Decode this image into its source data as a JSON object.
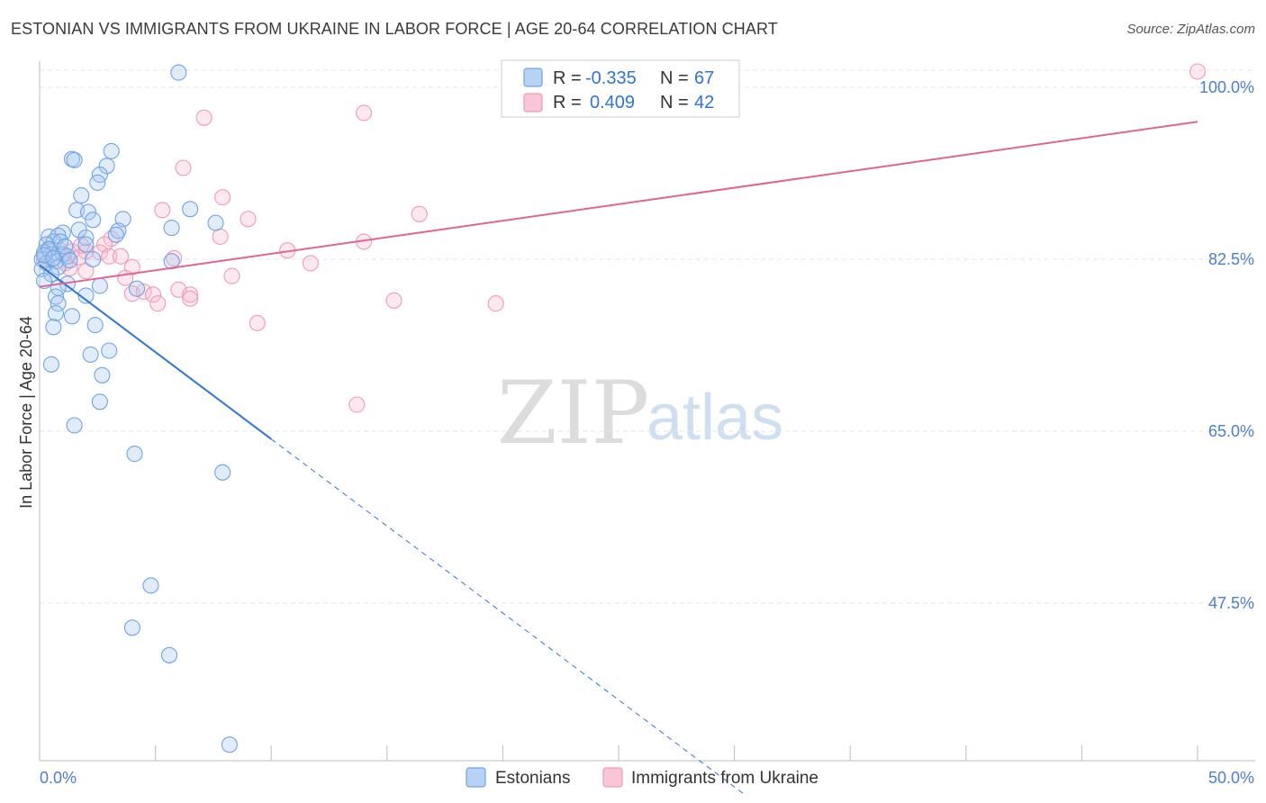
{
  "title": "ESTONIAN VS IMMIGRANTS FROM UKRAINE IN LABOR FORCE | AGE 20-64 CORRELATION CHART",
  "source": "Source: ZipAtlas.com",
  "colors": {
    "estonians": "#6fa3e6",
    "ukraine": "#f19ab8",
    "estonians_line": "#2e74d4",
    "ukraine_line": "#e06592",
    "tick_label": "#4a7fd0"
  },
  "chart_data": {
    "type": "scatter",
    "title": "ESTONIAN VS IMMIGRANTS FROM UKRAINE IN LABOR FORCE | AGE 20-64 CORRELATION CHART",
    "xlabel": "",
    "ylabel": "In Labor Force | Age 20-64",
    "xlim": [
      0,
      50
    ],
    "ylim": [
      32,
      102
    ],
    "x_tick_labels": [
      "0.0%",
      "50.0%"
    ],
    "y_ticks": [
      47.5,
      65.0,
      82.5,
      100.0
    ],
    "y_tick_labels": [
      "47.5%",
      "65.0%",
      "82.5%",
      "100.0%"
    ],
    "grid": true,
    "legend": {
      "position": "top-center",
      "rows": [
        {
          "r_label": "R =",
          "r_value": "-0.335",
          "n_label": "N =",
          "n_value": "67"
        },
        {
          "r_label": "R =",
          "r_value": "0.409",
          "n_label": "N =",
          "n_value": "42"
        }
      ]
    },
    "series": [
      {
        "name": "Estonians",
        "color": "#6fa3e6",
        "trend": {
          "x0": 0,
          "y0": 81.9,
          "x1": 10,
          "y1": 64.2,
          "dash_to_x": 30.5
        },
        "points": [
          [
            6.0,
            101.5
          ],
          [
            3.1,
            93.5
          ],
          [
            1.4,
            92.7
          ],
          [
            1.5,
            92.6
          ],
          [
            2.9,
            92.0
          ],
          [
            2.6,
            91.1
          ],
          [
            2.5,
            90.3
          ],
          [
            1.8,
            89.0
          ],
          [
            6.5,
            87.6
          ],
          [
            1.6,
            87.5
          ],
          [
            2.1,
            87.3
          ],
          [
            2.3,
            86.5
          ],
          [
            3.6,
            86.6
          ],
          [
            7.6,
            86.2
          ],
          [
            1.7,
            85.5
          ],
          [
            5.7,
            85.7
          ],
          [
            3.4,
            85.4
          ],
          [
            1.0,
            85.2
          ],
          [
            0.4,
            84.8
          ],
          [
            0.8,
            84.9
          ],
          [
            3.3,
            85.0
          ],
          [
            2.0,
            84.7
          ],
          [
            0.6,
            84.3
          ],
          [
            0.3,
            84.0
          ],
          [
            0.9,
            84.3
          ],
          [
            2.0,
            84.0
          ],
          [
            0.2,
            83.2
          ],
          [
            0.5,
            83.0
          ],
          [
            1.0,
            83.0
          ],
          [
            0.1,
            82.5
          ],
          [
            0.7,
            82.3
          ],
          [
            0.3,
            82.1
          ],
          [
            1.2,
            82.8
          ],
          [
            5.7,
            82.3
          ],
          [
            2.3,
            82.5
          ],
          [
            0.8,
            81.7
          ],
          [
            0.1,
            81.5
          ],
          [
            0.5,
            81.0
          ],
          [
            0.2,
            80.3
          ],
          [
            1.2,
            80.0
          ],
          [
            2.6,
            79.8
          ],
          [
            0.8,
            79.6
          ],
          [
            0.7,
            78.7
          ],
          [
            4.2,
            79.5
          ],
          [
            2.0,
            78.8
          ],
          [
            0.8,
            78.0
          ],
          [
            0.7,
            77.0
          ],
          [
            1.4,
            76.7
          ],
          [
            0.6,
            75.6
          ],
          [
            2.4,
            75.8
          ],
          [
            3.0,
            73.2
          ],
          [
            2.2,
            72.8
          ],
          [
            0.5,
            71.8
          ],
          [
            2.7,
            70.7
          ],
          [
            2.6,
            68.0
          ],
          [
            1.5,
            65.6
          ],
          [
            4.1,
            62.7
          ],
          [
            7.9,
            60.8
          ],
          [
            4.8,
            49.3
          ],
          [
            4.0,
            45.0
          ],
          [
            5.6,
            42.2
          ],
          [
            8.2,
            33.1
          ],
          [
            0.4,
            83.5
          ],
          [
            1.1,
            83.8
          ],
          [
            0.2,
            82.9
          ],
          [
            0.6,
            82.6
          ],
          [
            1.3,
            82.4
          ]
        ]
      },
      {
        "name": "Immigrants from Ukraine",
        "color": "#f19ab8",
        "trend": {
          "x0": 0,
          "y0": 79.7,
          "x1": 50,
          "y1": 96.5
        },
        "points": [
          [
            50.0,
            101.6
          ],
          [
            14.0,
            97.4
          ],
          [
            7.1,
            96.9
          ],
          [
            6.2,
            91.8
          ],
          [
            7.9,
            88.8
          ],
          [
            16.4,
            87.1
          ],
          [
            9.0,
            86.6
          ],
          [
            5.3,
            87.5
          ],
          [
            7.8,
            84.8
          ],
          [
            14.0,
            84.3
          ],
          [
            10.7,
            83.4
          ],
          [
            5.8,
            82.6
          ],
          [
            11.7,
            82.1
          ],
          [
            3.1,
            84.6
          ],
          [
            2.8,
            84.0
          ],
          [
            0.4,
            83.6
          ],
          [
            0.9,
            83.4
          ],
          [
            1.4,
            83.3
          ],
          [
            2.6,
            83.2
          ],
          [
            2.0,
            83.3
          ],
          [
            1.7,
            82.7
          ],
          [
            3.0,
            82.8
          ],
          [
            3.5,
            82.8
          ],
          [
            0.2,
            82.5
          ],
          [
            1.8,
            83.9
          ],
          [
            1.1,
            82.1
          ],
          [
            1.3,
            81.6
          ],
          [
            4.0,
            81.7
          ],
          [
            2.0,
            81.3
          ],
          [
            8.3,
            80.8
          ],
          [
            3.7,
            80.6
          ],
          [
            6.0,
            79.4
          ],
          [
            4.0,
            79.0
          ],
          [
            4.5,
            79.2
          ],
          [
            4.9,
            78.9
          ],
          [
            6.5,
            78.9
          ],
          [
            6.5,
            78.5
          ],
          [
            5.1,
            78.0
          ],
          [
            15.3,
            78.3
          ],
          [
            19.7,
            78.0
          ],
          [
            9.4,
            76.0
          ],
          [
            13.7,
            67.7
          ]
        ]
      }
    ]
  },
  "bottom_legend": {
    "estonians_label": "Estonians",
    "ukraine_label": "Immigrants from Ukraine"
  },
  "watermark": {
    "zip": "ZIP",
    "atlas": "atlas"
  }
}
